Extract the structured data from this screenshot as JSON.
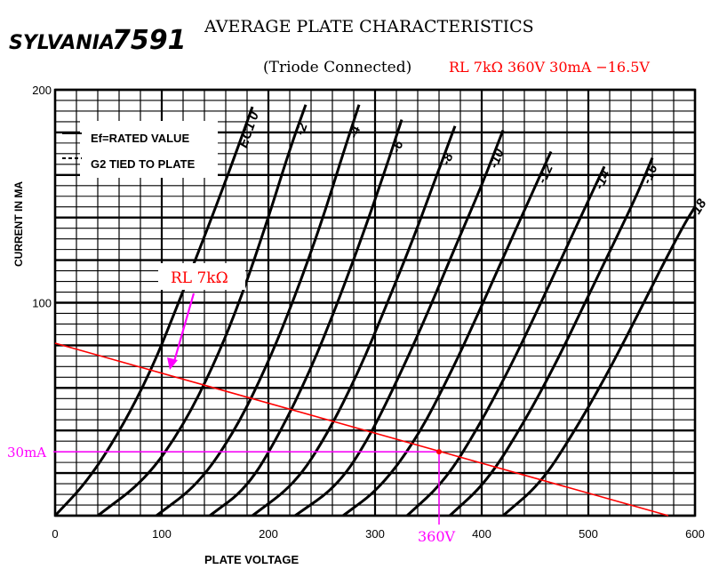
{
  "header": {
    "brand": "SYLVANIA",
    "tube": "7591",
    "title": "AVERAGE PLATE CHARACTERISTICS",
    "subtitle": "(Triode Connected)",
    "operating_point": "RL 7kΩ  360V 30mA −16.5V"
  },
  "legend": {
    "line1": "Ef=RATED VALUE",
    "line2": "G2 TIED TO PLATE"
  },
  "load_line_label": "RL 7kΩ",
  "colors": {
    "grid": "#000000",
    "curves": "#000000",
    "load_line": "#ff0000",
    "annotation": "#ff00ff",
    "red_text": "#ff0000"
  },
  "chart_data": {
    "type": "line",
    "title": "AVERAGE PLATE CHARACTERISTICS",
    "subtitle": "(Triode Connected)",
    "xlabel": "PLATE VOLTAGE",
    "ylabel": "CURRENT IN MA",
    "xlim": [
      0,
      600
    ],
    "ylim": [
      0,
      200
    ],
    "x_ticks": [
      0,
      100,
      200,
      300,
      400,
      500,
      600
    ],
    "y_tick_labels": [
      100,
      200
    ],
    "grid": true,
    "series": [
      {
        "name": "EC1 = 0",
        "label": "EC1 0",
        "points": [
          [
            0,
            0
          ],
          [
            30,
            16
          ],
          [
            60,
            39
          ],
          [
            90,
            68
          ],
          [
            115,
            99
          ],
          [
            140,
            131
          ],
          [
            165,
            164
          ],
          [
            185,
            192
          ]
        ]
      },
      {
        "name": "EC1 = -2",
        "label": "-2",
        "points": [
          [
            40,
            0
          ],
          [
            85,
            17
          ],
          [
            120,
            42
          ],
          [
            150,
            72
          ],
          [
            175,
            103
          ],
          [
            200,
            140
          ],
          [
            220,
            172
          ],
          [
            235,
            193
          ]
        ]
      },
      {
        "name": "EC1 = -4",
        "label": "-4",
        "points": [
          [
            95,
            0
          ],
          [
            135,
            15
          ],
          [
            170,
            41
          ],
          [
            200,
            72
          ],
          [
            225,
            103
          ],
          [
            250,
            138
          ],
          [
            270,
            170
          ],
          [
            285,
            193
          ]
        ]
      },
      {
        "name": "EC1 = -6",
        "label": "-6",
        "points": [
          [
            145,
            0
          ],
          [
            180,
            13
          ],
          [
            210,
            38
          ],
          [
            240,
            69
          ],
          [
            265,
            100
          ],
          [
            290,
            134
          ],
          [
            310,
            163
          ],
          [
            325,
            186
          ]
        ]
      },
      {
        "name": "EC1 = -8",
        "label": "-8",
        "points": [
          [
            185,
            0
          ],
          [
            225,
            15
          ],
          [
            255,
            38
          ],
          [
            285,
            68
          ],
          [
            310,
            98
          ],
          [
            335,
            129
          ],
          [
            355,
            156
          ],
          [
            375,
            183
          ]
        ]
      },
      {
        "name": "EC1 = -10",
        "label": "-10",
        "points": [
          [
            225,
            0
          ],
          [
            265,
            14
          ],
          [
            295,
            37
          ],
          [
            325,
            68
          ],
          [
            350,
            96
          ],
          [
            375,
            126
          ],
          [
            400,
            155
          ],
          [
            420,
            181
          ]
        ]
      },
      {
        "name": "EC1 = -12",
        "label": "-12",
        "points": [
          [
            270,
            0
          ],
          [
            305,
            13
          ],
          [
            340,
            37
          ],
          [
            370,
            66
          ],
          [
            395,
            93
          ],
          [
            420,
            121
          ],
          [
            445,
            149
          ],
          [
            465,
            171
          ]
        ]
      },
      {
        "name": "EC1 = -14",
        "label": "-14",
        "points": [
          [
            330,
            0
          ],
          [
            365,
            16
          ],
          [
            395,
            40
          ],
          [
            425,
            68
          ],
          [
            450,
            94
          ],
          [
            475,
            121
          ],
          [
            500,
            148
          ],
          [
            515,
            164
          ]
        ]
      },
      {
        "name": "EC1 = -16",
        "label": "-16",
        "points": [
          [
            370,
            0
          ],
          [
            405,
            16
          ],
          [
            440,
            44
          ],
          [
            470,
            72
          ],
          [
            495,
            98
          ],
          [
            520,
            124
          ],
          [
            545,
            150
          ],
          [
            560,
            168
          ]
        ]
      },
      {
        "name": "EC1 = -18",
        "label": "-18",
        "points": [
          [
            420,
            0
          ],
          [
            455,
            15
          ],
          [
            485,
            38
          ],
          [
            515,
            64
          ],
          [
            545,
            93
          ],
          [
            570,
            118
          ],
          [
            590,
            137
          ],
          [
            600,
            145
          ]
        ]
      }
    ],
    "load_line": {
      "label": "RL 7kΩ",
      "points": [
        [
          0,
          81
        ],
        [
          575,
          0
        ]
      ]
    },
    "operating_point": {
      "voltage": 360,
      "current": 30,
      "label_v": "360V",
      "label_i": "30mA",
      "grid_bias": -16.5
    }
  }
}
